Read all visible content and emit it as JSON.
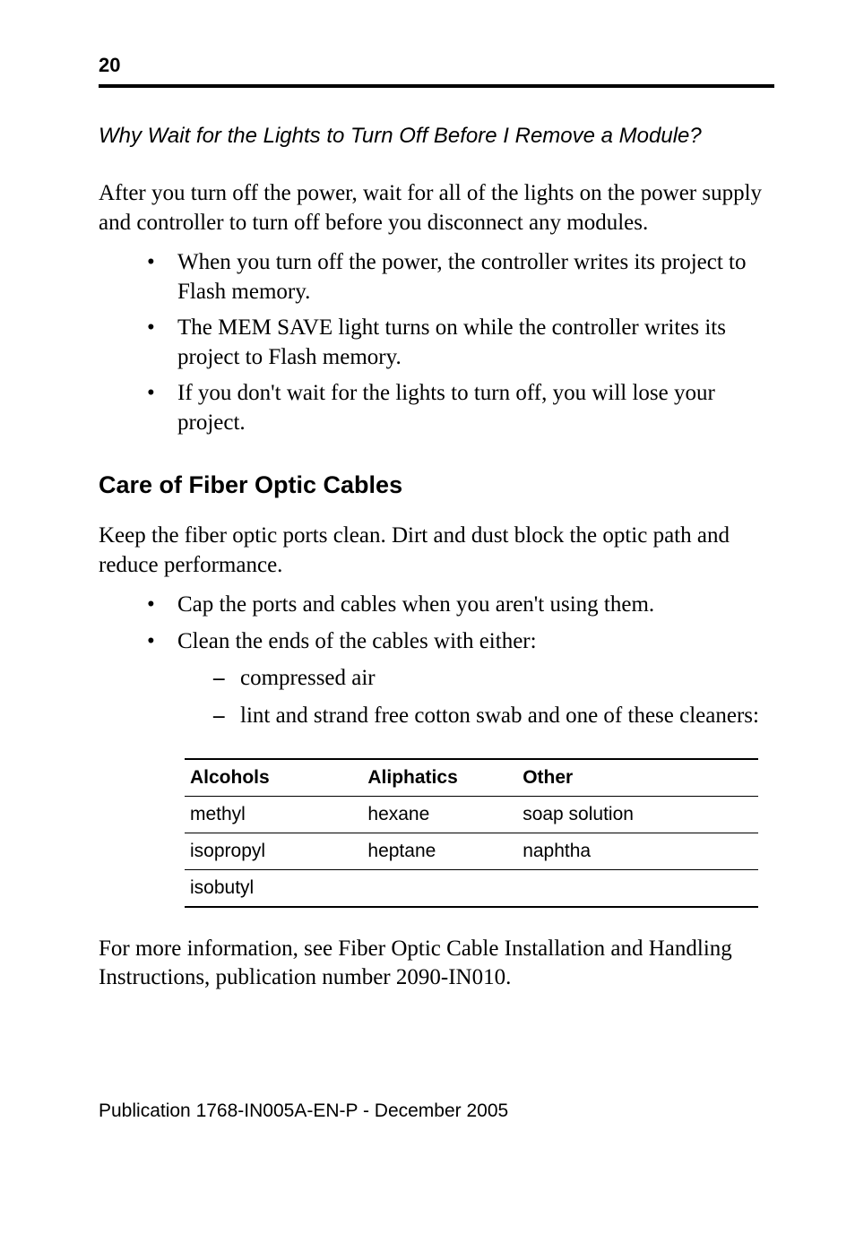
{
  "page_number": "20",
  "subheading": "Why Wait for the Lights to Turn Off Before I Remove a Module?",
  "para1": "After you turn off the power, wait for all of the lights on the power supply and controller to turn off before you disconnect any modules.",
  "bullets_a": [
    "When you turn off the power, the controller writes its project to Flash memory.",
    "The MEM SAVE light turns on while the controller writes its project to Flash memory.",
    "If you don't wait for the lights to turn off, you will lose your project."
  ],
  "heading": "Care of Fiber Optic Cables",
  "para2": "Keep the fiber optic ports clean. Dirt and dust block the optic path and reduce performance.",
  "bullets_b": [
    "Cap the ports and cables when you aren't using them.",
    "Clean the ends of the cables with either:"
  ],
  "dashes": [
    "compressed air",
    "lint and strand free cotton swab and one of these cleaners:"
  ],
  "table": {
    "columns": [
      "Alcohols",
      "Aliphatics",
      "Other"
    ],
    "rows": [
      [
        "methyl",
        "hexane",
        "soap solution"
      ],
      [
        "isopropyl",
        "heptane",
        "naphtha"
      ],
      [
        "isobutyl",
        "",
        ""
      ]
    ],
    "col_widths": [
      "31%",
      "27%",
      "42%"
    ]
  },
  "para3": "For more information, see Fiber Optic Cable Installation and Handling Instructions, publication number 2090-IN010.",
  "footer_prefix": "Publication ",
  "footer_code": "1768-IN005A-EN-P - December 2005",
  "colors": {
    "text": "#000000",
    "background": "#ffffff",
    "rule": "#000000"
  },
  "fonts": {
    "body": "Garamond serif",
    "headings": "Arial sans-serif"
  }
}
